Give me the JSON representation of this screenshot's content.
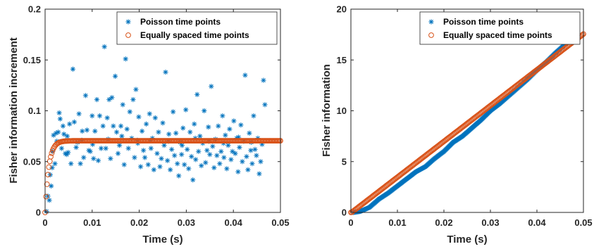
{
  "chart_data": [
    {
      "type": "scatter",
      "title": "",
      "xlabel": "Time (s)",
      "ylabel": "Fisher information increment",
      "xlim": [
        0,
        0.05
      ],
      "ylim": [
        0,
        0.2
      ],
      "xticks": [
        "0",
        "0.01",
        "0.02",
        "0.03",
        "0.04",
        "0.05"
      ],
      "yticks": [
        "0",
        "0.05",
        "0.1",
        "0.15",
        "0.2"
      ],
      "grid": false,
      "legend_position": "top-right",
      "series": [
        {
          "name": "Poisson time points",
          "marker": "asterisk",
          "color": "#0072BD",
          "points": [
            [
              0.0003,
              0.001
            ],
            [
              0.0006,
              0.016
            ],
            [
              0.0009,
              0.012
            ],
            [
              0.0011,
              0.037
            ],
            [
              0.0013,
              0.026
            ],
            [
              0.0015,
              0.044
            ],
            [
              0.0016,
              0.06
            ],
            [
              0.0018,
              0.076
            ],
            [
              0.0021,
              0.048
            ],
            [
              0.0023,
              0.078
            ],
            [
              0.0025,
              0.07
            ],
            [
              0.0028,
              0.079
            ],
            [
              0.003,
              0.098
            ],
            [
              0.0032,
              0.092
            ],
            [
              0.0035,
              0.063
            ],
            [
              0.0038,
              0.085
            ],
            [
              0.004,
              0.077
            ],
            [
              0.0043,
              0.058
            ],
            [
              0.0046,
              0.057
            ],
            [
              0.0049,
              0.059
            ],
            [
              0.0052,
              0.087
            ],
            [
              0.0055,
              0.048
            ],
            [
              0.0059,
              0.141
            ],
            [
              0.0062,
              0.089
            ],
            [
              0.0066,
              0.064
            ],
            [
              0.0069,
              0.069
            ],
            [
              0.0072,
              0.097
            ],
            [
              0.0075,
              0.048
            ],
            [
              0.0079,
              0.08
            ],
            [
              0.0082,
              0.054
            ],
            [
              0.0086,
              0.115
            ],
            [
              0.0089,
              0.081
            ],
            [
              0.0093,
              0.061
            ],
            [
              0.0096,
              0.06
            ],
            [
              0.01,
              0.095
            ],
            [
              0.0103,
              0.053
            ],
            [
              0.0106,
              0.08
            ],
            [
              0.011,
              0.111
            ],
            [
              0.0113,
              0.051
            ],
            [
              0.0116,
              0.095
            ],
            [
              0.0119,
              0.063
            ],
            [
              0.0123,
              0.085
            ],
            [
              0.0126,
              0.163
            ],
            [
              0.0129,
              0.063
            ],
            [
              0.0132,
              0.093
            ],
            [
              0.0136,
              0.111
            ],
            [
              0.0139,
              0.053
            ],
            [
              0.0142,
              0.113
            ],
            [
              0.0145,
              0.085
            ],
            [
              0.0149,
              0.134
            ],
            [
              0.0152,
              0.079
            ],
            [
              0.0155,
              0.058
            ],
            [
              0.0158,
              0.066
            ],
            [
              0.0161,
              0.085
            ],
            [
              0.0165,
              0.106
            ],
            [
              0.0168,
              0.047
            ],
            [
              0.0171,
              0.151
            ],
            [
              0.0174,
              0.082
            ],
            [
              0.0177,
              0.063
            ],
            [
              0.018,
              0.099
            ],
            [
              0.0184,
              0.073
            ],
            [
              0.0187,
              0.111
            ],
            [
              0.019,
              0.054
            ],
            [
              0.0193,
              0.121
            ],
            [
              0.0196,
              0.071
            ],
            [
              0.0199,
              0.094
            ],
            [
              0.0203,
              0.045
            ],
            [
              0.0206,
              0.08
            ],
            [
              0.0209,
              0.061
            ],
            [
              0.0212,
              0.054
            ],
            [
              0.0215,
              0.087
            ],
            [
              0.0219,
              0.047
            ],
            [
              0.0222,
              0.097
            ],
            [
              0.0225,
              0.063
            ],
            [
              0.0228,
              0.073
            ],
            [
              0.0231,
              0.042
            ],
            [
              0.0234,
              0.093
            ],
            [
              0.0238,
              0.058
            ],
            [
              0.0241,
              0.079
            ],
            [
              0.0244,
              0.045
            ],
            [
              0.0247,
              0.053
            ],
            [
              0.025,
              0.088
            ],
            [
              0.0253,
              0.066
            ],
            [
              0.0256,
              0.138
            ],
            [
              0.026,
              0.051
            ],
            [
              0.0263,
              0.077
            ],
            [
              0.0266,
              0.042
            ],
            [
              0.0269,
              0.062
            ],
            [
              0.0272,
              0.099
            ],
            [
              0.0275,
              0.056
            ],
            [
              0.0278,
              0.078
            ],
            [
              0.0281,
              0.048
            ],
            [
              0.0284,
              0.036
            ],
            [
              0.0287,
              0.069
            ],
            [
              0.029,
              0.057
            ],
            [
              0.0293,
              0.083
            ],
            [
              0.0296,
              0.047
            ],
            [
              0.0299,
              0.101
            ],
            [
              0.0302,
              0.062
            ],
            [
              0.0305,
              0.043
            ],
            [
              0.0308,
              0.079
            ],
            [
              0.0311,
              0.055
            ],
            [
              0.0314,
              0.032
            ],
            [
              0.0317,
              0.087
            ],
            [
              0.032,
              0.052
            ],
            [
              0.0323,
              0.116
            ],
            [
              0.0326,
              0.06
            ],
            [
              0.0329,
              0.075
            ],
            [
              0.0332,
              0.046
            ],
            [
              0.0335,
              0.068
            ],
            [
              0.0338,
              0.1
            ],
            [
              0.0341,
              0.049
            ],
            [
              0.0344,
              0.061
            ],
            [
              0.0347,
              0.084
            ],
            [
              0.035,
              0.057
            ],
            [
              0.0353,
              0.124
            ],
            [
              0.0356,
              0.065
            ],
            [
              0.0359,
              0.044
            ],
            [
              0.0362,
              0.072
            ],
            [
              0.0365,
              0.056
            ],
            [
              0.0368,
              0.085
            ],
            [
              0.0371,
              0.048
            ],
            [
              0.0374,
              0.06
            ],
            [
              0.0377,
              0.095
            ],
            [
              0.038,
              0.054
            ],
            [
              0.0383,
              0.076
            ],
            [
              0.0386,
              0.043
            ],
            [
              0.0389,
              0.066
            ],
            [
              0.0392,
              0.082
            ],
            [
              0.0395,
              0.052
            ],
            [
              0.0398,
              0.06
            ],
            [
              0.0401,
              0.09
            ],
            [
              0.0404,
              0.058
            ],
            [
              0.0407,
              0.073
            ],
            [
              0.041,
              0.04
            ],
            [
              0.0413,
              0.064
            ],
            [
              0.0416,
              0.086
            ],
            [
              0.0419,
              0.05
            ],
            [
              0.0422,
              0.07
            ],
            [
              0.0425,
              0.135
            ],
            [
              0.0428,
              0.055
            ],
            [
              0.0431,
              0.042
            ],
            [
              0.0434,
              0.078
            ],
            [
              0.0437,
              0.061
            ],
            [
              0.044,
              0.048
            ],
            [
              0.0443,
              0.095
            ],
            [
              0.0446,
              0.062
            ],
            [
              0.0449,
              0.056
            ],
            [
              0.0452,
              0.073
            ],
            [
              0.0455,
              0.038
            ],
            [
              0.0458,
              0.05
            ],
            [
              0.0461,
              0.067
            ],
            [
              0.0464,
              0.13
            ],
            [
              0.0467,
              0.106
            ],
            [
              0.0047,
              0.075
            ],
            [
              0.0078,
              0.071
            ],
            [
              0.0101,
              0.067
            ],
            [
              0.0134,
              0.072
            ],
            [
              0.0163,
              0.075
            ],
            [
              0.0197,
              0.068
            ],
            [
              0.0224,
              0.071
            ],
            [
              0.0262,
              0.07
            ],
            [
              0.0291,
              0.066
            ],
            [
              0.0319,
              0.073
            ],
            [
              0.0348,
              0.07
            ],
            [
              0.0379,
              0.068
            ],
            [
              0.0411,
              0.074
            ],
            [
              0.0438,
              0.069
            ]
          ]
        },
        {
          "name": "Equally spaced time points",
          "marker": "circle",
          "color": "#D95319",
          "sampling_interval": 0.0002,
          "x_max": 0.05,
          "plateau": 0.0705,
          "rise_time_constant": 0.0008
        }
      ]
    },
    {
      "type": "scatter",
      "title": "",
      "xlabel": "Time (s)",
      "ylabel": "Fisher information",
      "xlim": [
        0,
        0.05
      ],
      "ylim": [
        0,
        20
      ],
      "xticks": [
        "0",
        "0.01",
        "0.02",
        "0.03",
        "0.04",
        "0.05"
      ],
      "yticks": [
        "0",
        "5",
        "10",
        "15",
        "20"
      ],
      "grid": false,
      "legend_position": "top-right",
      "series": [
        {
          "name": "Poisson time points",
          "marker": "asterisk",
          "color": "#0072BD",
          "points": [
            [
              0.0005,
              0.0
            ],
            [
              0.002,
              0.1
            ],
            [
              0.004,
              0.5
            ],
            [
              0.006,
              1.3
            ],
            [
              0.008,
              1.9
            ],
            [
              0.01,
              2.6
            ],
            [
              0.012,
              3.3
            ],
            [
              0.014,
              4.0
            ],
            [
              0.016,
              4.5
            ],
            [
              0.018,
              5.3
            ],
            [
              0.02,
              6.0
            ],
            [
              0.022,
              6.9
            ],
            [
              0.024,
              7.5
            ],
            [
              0.026,
              8.3
            ],
            [
              0.028,
              9.1
            ],
            [
              0.03,
              10.0
            ],
            [
              0.032,
              10.7
            ],
            [
              0.034,
              11.5
            ],
            [
              0.036,
              12.3
            ],
            [
              0.038,
              13.1
            ],
            [
              0.04,
              14.0
            ],
            [
              0.042,
              14.8
            ],
            [
              0.044,
              15.7
            ],
            [
              0.046,
              16.5
            ],
            [
              0.047,
              16.9
            ]
          ],
          "line_density": 0.00015
        },
        {
          "name": "Equally spaced time points",
          "marker": "circle",
          "color": "#D95319",
          "sampling_interval": 0.0002,
          "x_max": 0.05,
          "final_value": 17.6
        }
      ]
    }
  ]
}
